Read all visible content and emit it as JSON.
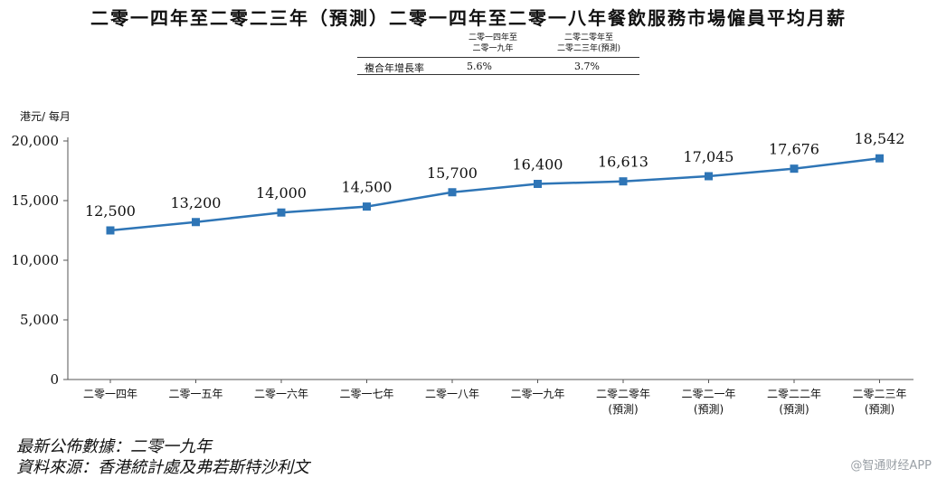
{
  "chart_data": {
    "type": "line",
    "title": "二零一四年至二零二三年（預測）二零一四年至二零一八年餐飲服務市場僱員平均月薪",
    "ylabel": "港元/ 每月",
    "xlabel": "",
    "ylim": [
      0,
      20000
    ],
    "yticks": [
      "0",
      "5,000",
      "10,000",
      "15,000",
      "20,000"
    ],
    "ytick_values": [
      0,
      5000,
      10000,
      15000,
      20000
    ],
    "categories": [
      [
        "二零一四年"
      ],
      [
        "二零一五年"
      ],
      [
        "二零一六年"
      ],
      [
        "二零一七年"
      ],
      [
        "二零一八年"
      ],
      [
        "二零一九年"
      ],
      [
        "二零二零年",
        "(預測)"
      ],
      [
        "二零二一年",
        "(預測)"
      ],
      [
        "二零二二年",
        "(預測)"
      ],
      [
        "二零二三年",
        "(預測)"
      ]
    ],
    "values": [
      12500,
      13200,
      14000,
      14500,
      15700,
      16400,
      16613,
      17045,
      17676,
      18542
    ],
    "value_labels": [
      "12,500",
      "13,200",
      "14,000",
      "14,500",
      "15,700",
      "16,400",
      "16,613",
      "17,045",
      "17,676",
      "18,542"
    ],
    "line_color": "#2e75b6",
    "grid": false
  },
  "cagr_table": {
    "col1_header_line1": "二零一四年至",
    "col1_header_line2": "二零一九年",
    "col2_header_line1": "二零二零年至",
    "col2_header_line2": "二零二三年(預測)",
    "row_label": "複合年增長率",
    "col1_value": "5.6%",
    "col2_value": "3.7%"
  },
  "footer": {
    "line1": "最新公佈數據：二零一九年",
    "line2": "資料來源：香港統計處及弗若斯特沙利文"
  },
  "watermark": "@智通财经APP"
}
